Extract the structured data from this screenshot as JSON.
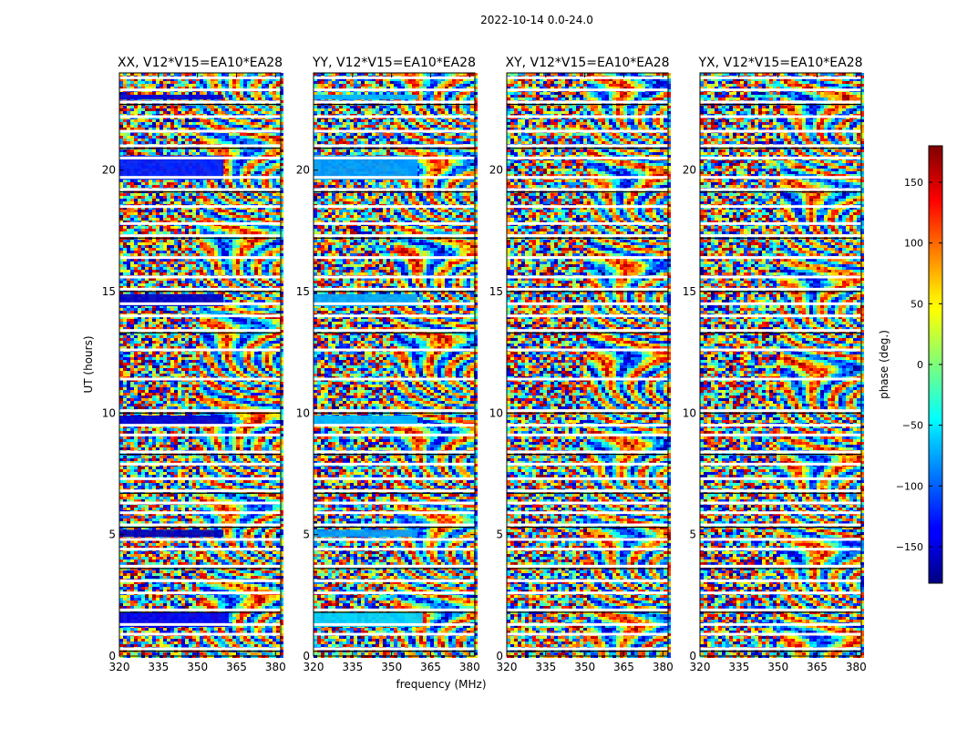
{
  "figure": {
    "suptitle": "2022-10-14 0.0-24.0",
    "xlabel": "frequency (MHz)",
    "ylabel": "UT (hours)",
    "colorbar_label": "phase (deg.)"
  },
  "chart_data": {
    "type": "heatmap",
    "title": "2022-10-14 0.0-24.0",
    "xlabel": "frequency (MHz)",
    "ylabel": "UT (hours)",
    "xlim": [
      320,
      382
    ],
    "ylim": [
      0,
      24
    ],
    "xticks": [
      320,
      335,
      350,
      365,
      380
    ],
    "xtick_labels": [
      "320",
      "335",
      "350",
      "365",
      "380"
    ],
    "yticks": [
      0,
      5,
      10,
      15,
      20
    ],
    "ytick_labels": [
      "0",
      "5",
      "10",
      "15",
      "20"
    ],
    "panels": [
      {
        "title": "XX, V12*V15=EA10*EA28",
        "pol": "XX",
        "mean_phase_bands": [
          {
            "y0": 1.2,
            "y1": 1.8,
            "x_end": 362,
            "phase": -140
          },
          {
            "y0": 4.9,
            "y1": 5.2,
            "x_end": 360,
            "phase": -160
          },
          {
            "y0": 9.5,
            "y1": 9.9,
            "x_end": 360,
            "phase": -150
          },
          {
            "y0": 14.4,
            "y1": 14.9,
            "x_end": 360,
            "phase": -155
          },
          {
            "y0": 19.6,
            "y1": 20.6,
            "x_end": 360,
            "phase": -125
          },
          {
            "y0": 22.9,
            "y1": 23.1,
            "x_end": 360,
            "phase": -150
          }
        ]
      },
      {
        "title": "YY, V12*V15=EA10*EA28",
        "pol": "YY",
        "mean_phase_bands": [
          {
            "y0": 1.2,
            "y1": 1.8,
            "x_end": 362,
            "phase": -60
          },
          {
            "y0": 4.9,
            "y1": 5.2,
            "x_end": 360,
            "phase": -80
          },
          {
            "y0": 9.5,
            "y1": 9.9,
            "x_end": 360,
            "phase": -70
          },
          {
            "y0": 14.4,
            "y1": 14.9,
            "x_end": 360,
            "phase": -75
          },
          {
            "y0": 19.6,
            "y1": 20.6,
            "x_end": 360,
            "phase": -80
          },
          {
            "y0": 22.9,
            "y1": 23.1,
            "x_end": 360,
            "phase": -70
          }
        ]
      },
      {
        "title": "XY, V12*V15=EA10*EA28",
        "pol": "XY",
        "mean_phase_bands": []
      },
      {
        "title": "YX, V12*V15=EA10*EA28",
        "pol": "YX",
        "mean_phase_bands": []
      }
    ],
    "colorbar": {
      "label": "phase (deg.)",
      "range": [
        -180,
        180
      ],
      "ticks": [
        150,
        100,
        50,
        0,
        -50,
        -100,
        -150
      ],
      "tick_labels": [
        "150",
        "100",
        "50",
        "0",
        "−50",
        "−100",
        "−150"
      ],
      "colormap": "jet"
    },
    "flagged_gap_hours": [
      0.3,
      0.9,
      1.3,
      1.9,
      2.6,
      3.1,
      3.7,
      4.4,
      4.8,
      5.4,
      5.9,
      6.3,
      6.8,
      7.3,
      7.9,
      8.4,
      9.1,
      9.5,
      10.1,
      11.4,
      12.6,
      13.4,
      14.0,
      14.5,
      15.1,
      15.6,
      16.4,
      17.3,
      17.8,
      18.5,
      19.2,
      19.7,
      20.5,
      21.0,
      21.6,
      22.2,
      22.8,
      23.3,
      23.8
    ]
  }
}
